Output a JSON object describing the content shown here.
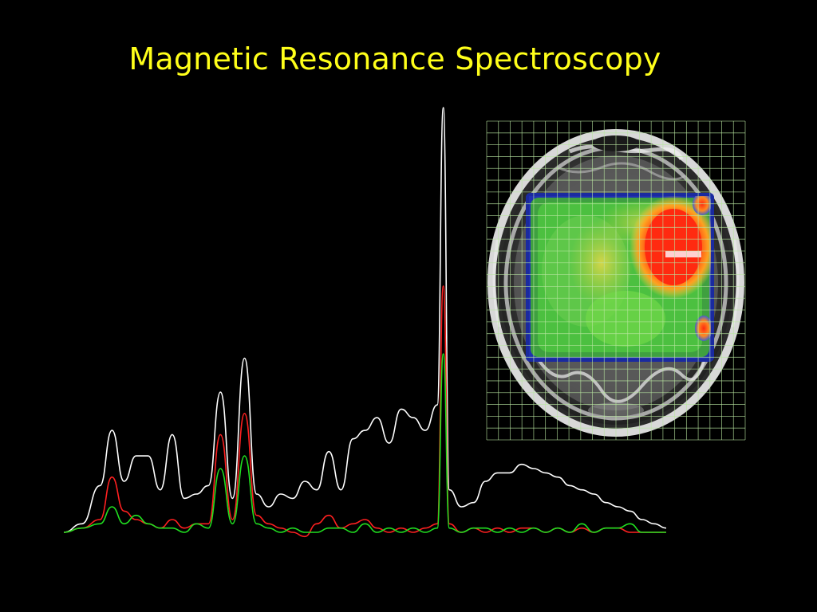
{
  "slide": {
    "title": "Magnetic Resonance Spectroscopy"
  },
  "colors": {
    "background": "#000000",
    "title": "#ffff1a",
    "grid": "#b9e6a0",
    "spectrum_series": [
      "#ffffff",
      "#ff2020",
      "#20e020"
    ]
  },
  "chart_data": {
    "type": "line",
    "title": "",
    "xlabel": "",
    "ylabel": "",
    "grid": false,
    "legend": "none",
    "x_range": [
      0,
      100
    ],
    "y_range": [
      0,
      100
    ],
    "series": [
      {
        "color": "#ffffff",
        "x": [
          0,
          3,
          6,
          8,
          10,
          12,
          14,
          16,
          18,
          20,
          22,
          24,
          26,
          28,
          30,
          32,
          34,
          36,
          38,
          40,
          42,
          44,
          46,
          48,
          50,
          52,
          54,
          56,
          58,
          60,
          62,
          63,
          64,
          66,
          68,
          70,
          72,
          74,
          76,
          78,
          80,
          82,
          84,
          86,
          88,
          90,
          92,
          94,
          96,
          98,
          100
        ],
        "y": [
          0,
          2,
          11,
          24,
          12,
          18,
          18,
          10,
          23,
          8,
          9,
          11,
          33,
          8,
          41,
          9,
          6,
          9,
          8,
          12,
          10,
          19,
          10,
          22,
          24,
          27,
          21,
          29,
          27,
          24,
          30,
          100,
          10,
          6,
          7,
          12,
          14,
          14,
          16,
          15,
          14,
          13,
          11,
          10,
          9,
          7,
          6,
          5,
          3,
          2,
          1
        ]
      },
      {
        "color": "#ff2020",
        "x": [
          0,
          3,
          6,
          8,
          10,
          12,
          14,
          16,
          18,
          20,
          22,
          24,
          26,
          28,
          30,
          32,
          34,
          36,
          38,
          40,
          42,
          44,
          46,
          48,
          50,
          52,
          54,
          56,
          58,
          60,
          62,
          63,
          64,
          66,
          68,
          70,
          72,
          74,
          76,
          78,
          80,
          82,
          84,
          86,
          88,
          90,
          92,
          94,
          96,
          98,
          100
        ],
        "y": [
          0,
          1,
          3,
          13,
          5,
          3,
          2,
          1,
          3,
          1,
          2,
          2,
          23,
          3,
          28,
          4,
          2,
          1,
          0,
          -1,
          2,
          4,
          1,
          2,
          3,
          1,
          0,
          1,
          0,
          1,
          2,
          58,
          2,
          0,
          1,
          0,
          1,
          0,
          1,
          1,
          0,
          1,
          0,
          1,
          0,
          1,
          1,
          0,
          0,
          0,
          0
        ]
      },
      {
        "color": "#20e020",
        "x": [
          0,
          3,
          6,
          8,
          10,
          12,
          14,
          16,
          18,
          20,
          22,
          24,
          26,
          28,
          30,
          32,
          34,
          36,
          38,
          40,
          42,
          44,
          46,
          48,
          50,
          52,
          54,
          56,
          58,
          60,
          62,
          63,
          64,
          66,
          68,
          70,
          72,
          74,
          76,
          78,
          80,
          82,
          84,
          86,
          88,
          90,
          92,
          94,
          96,
          98,
          100
        ],
        "y": [
          0,
          1,
          2,
          6,
          2,
          4,
          2,
          1,
          1,
          0,
          2,
          1,
          15,
          2,
          18,
          2,
          1,
          0,
          1,
          0,
          0,
          1,
          1,
          0,
          2,
          0,
          1,
          0,
          1,
          0,
          1,
          42,
          1,
          0,
          1,
          1,
          0,
          1,
          0,
          1,
          0,
          1,
          0,
          2,
          0,
          1,
          1,
          2,
          0,
          0,
          0
        ]
      }
    ]
  },
  "brain_map": {
    "grid_cols": 22,
    "grid_rows": 27
  }
}
